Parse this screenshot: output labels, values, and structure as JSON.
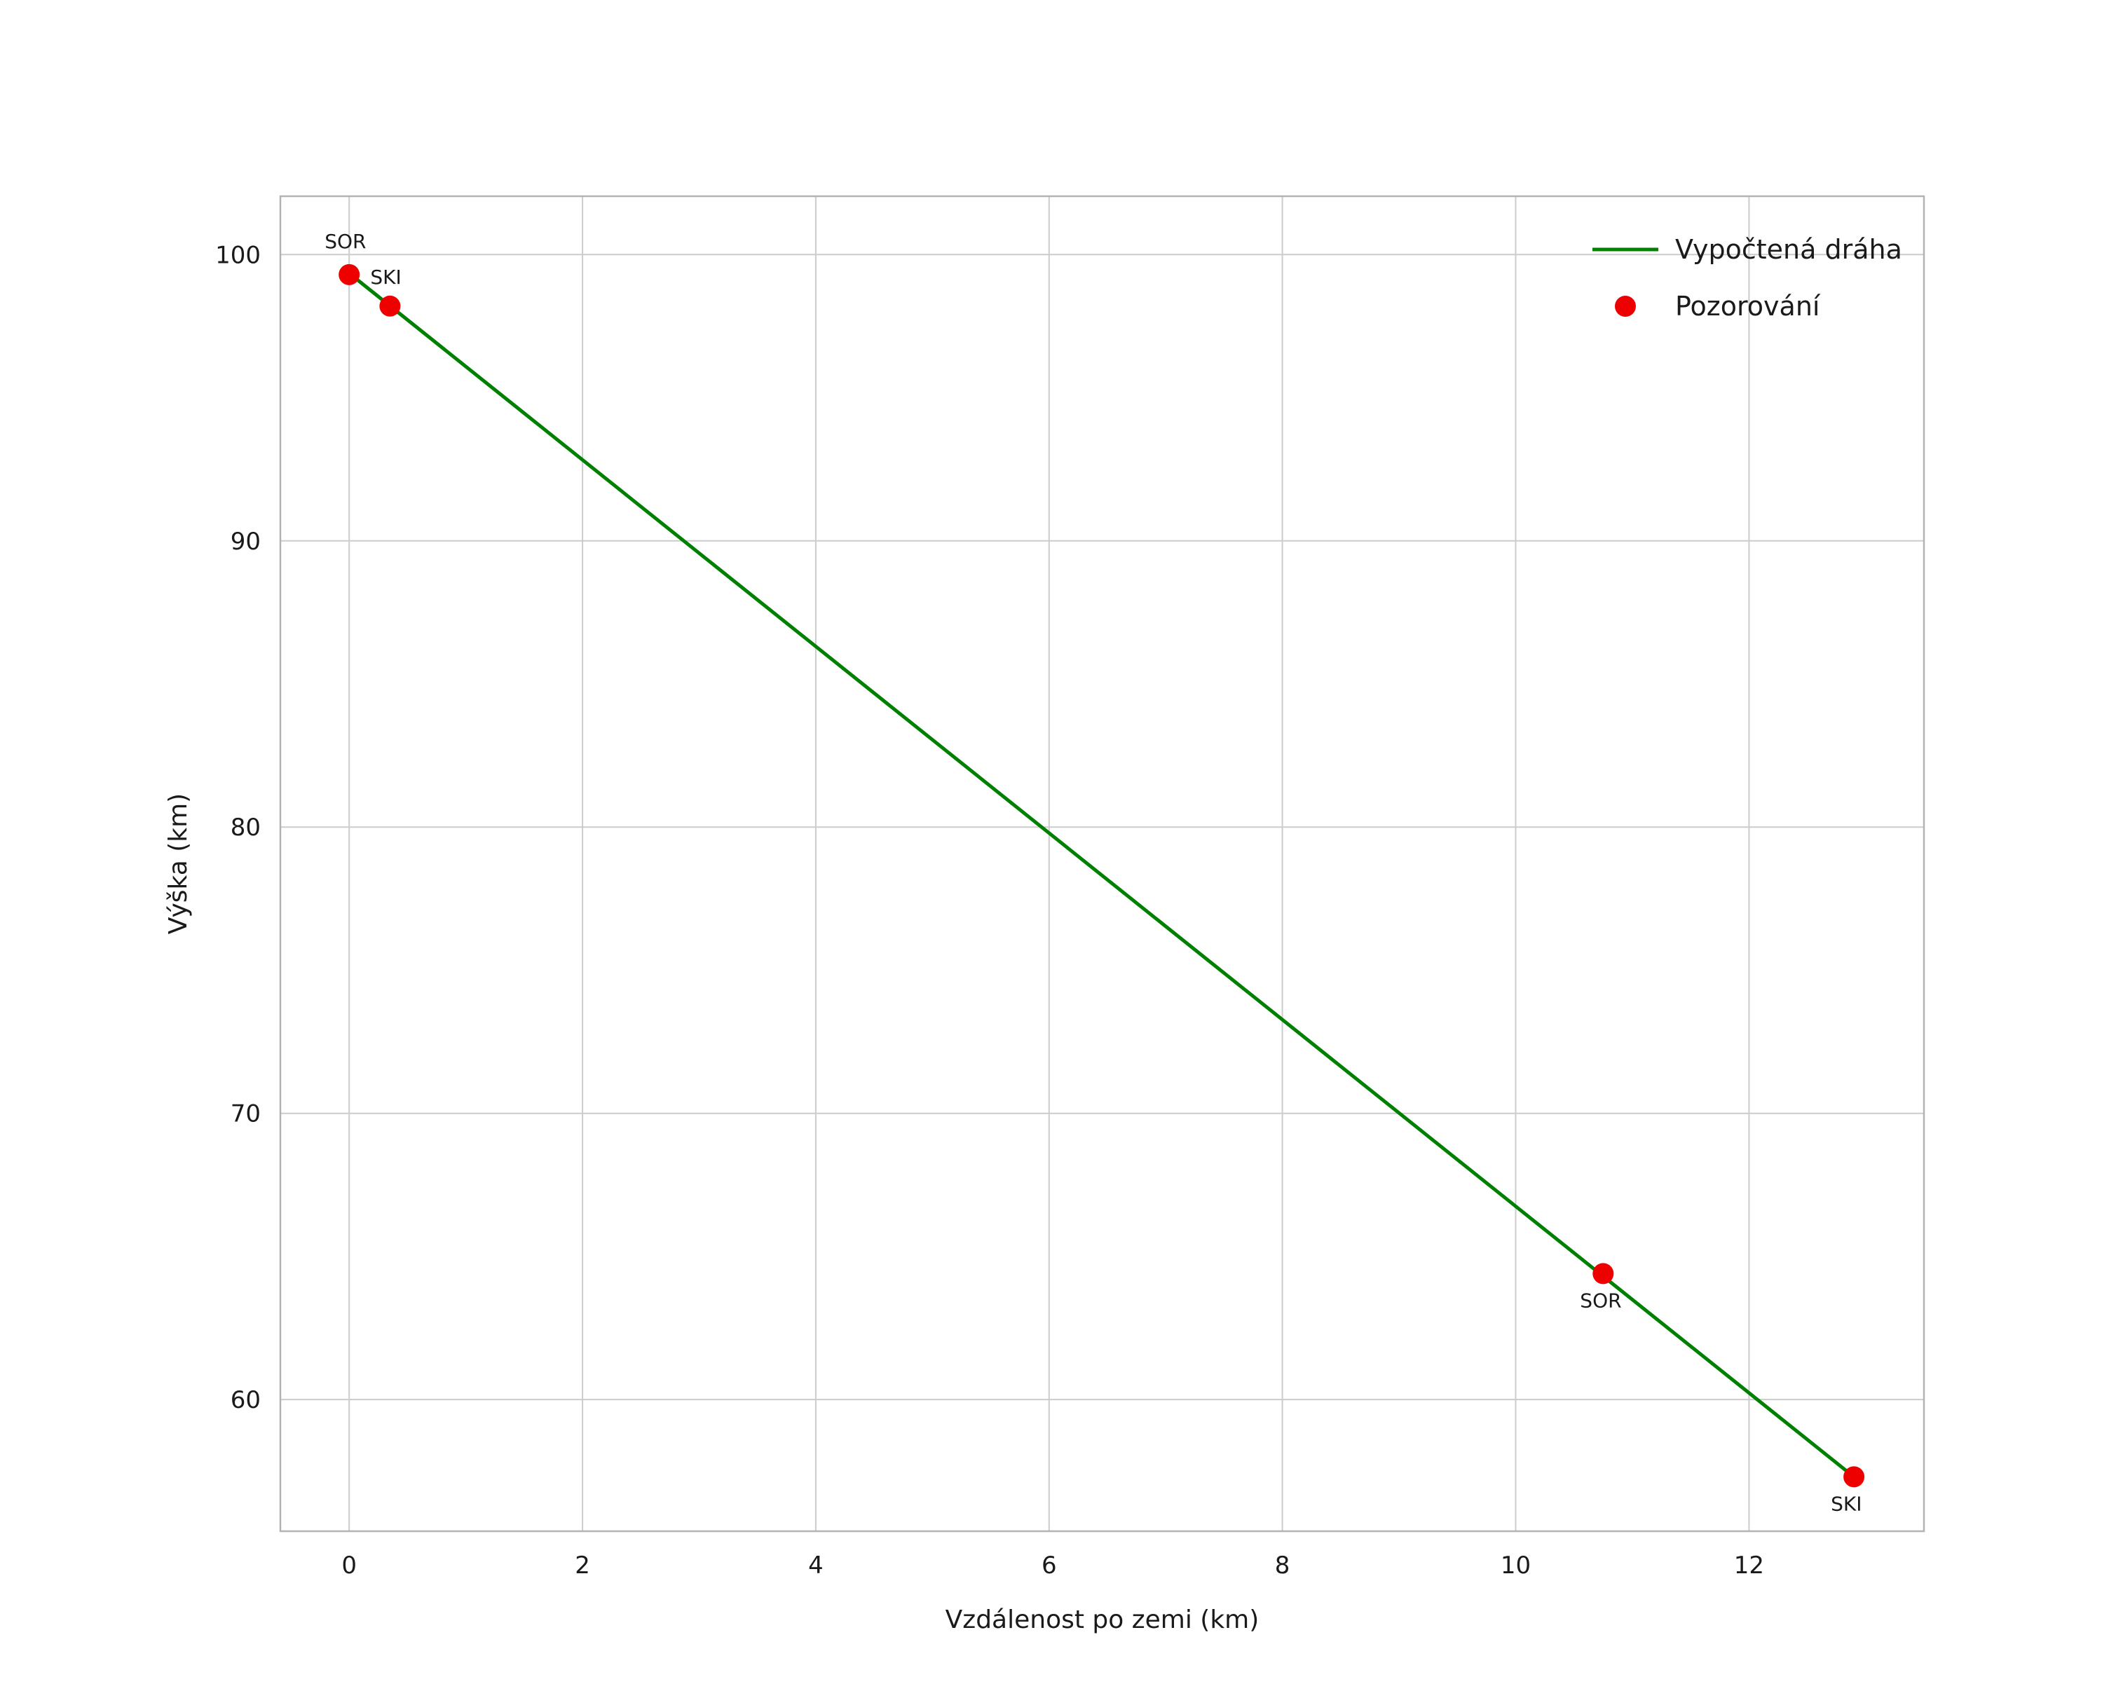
{
  "chart_data": {
    "type": "line",
    "title": "",
    "xlabel": "Vzdálenost po zemi (km)",
    "ylabel": "Výška (km)",
    "xlim": [
      -0.59,
      13.5
    ],
    "ylim": [
      55.4,
      102.04
    ],
    "x_ticks": [
      0,
      2,
      4,
      6,
      8,
      10,
      12
    ],
    "y_ticks": [
      60,
      70,
      80,
      90,
      100
    ],
    "grid": true,
    "legend": {
      "position": "upper-right",
      "entries": [
        {
          "label": "Vypočtená dráha",
          "type": "line",
          "color": "#008000"
        },
        {
          "label": "Pozorování",
          "type": "marker",
          "color": "#ee0000"
        }
      ]
    },
    "series": [
      {
        "name": "Vypočtená dráha",
        "type": "line",
        "color": "#008000",
        "points": [
          [
            0.0,
            99.35
          ],
          [
            12.9,
            57.3
          ]
        ]
      },
      {
        "name": "Pozorování",
        "type": "scatter",
        "color": "#ee0000",
        "points": [
          [
            0.0,
            99.3
          ],
          [
            0.35,
            98.2
          ],
          [
            10.75,
            64.4
          ],
          [
            12.9,
            57.3
          ]
        ],
        "labels": [
          "SOR",
          "SKI",
          "SOR",
          "SKI"
        ],
        "label_offsets": [
          [
            -35,
            -38
          ],
          [
            -28,
            -32
          ],
          [
            -33,
            48
          ],
          [
            -33,
            48
          ]
        ]
      }
    ],
    "style": {
      "background": "#ffffff",
      "grid_color": "#cccccc",
      "spine_color": "#b3b3b3",
      "text_color": "#1a1a1a"
    }
  }
}
